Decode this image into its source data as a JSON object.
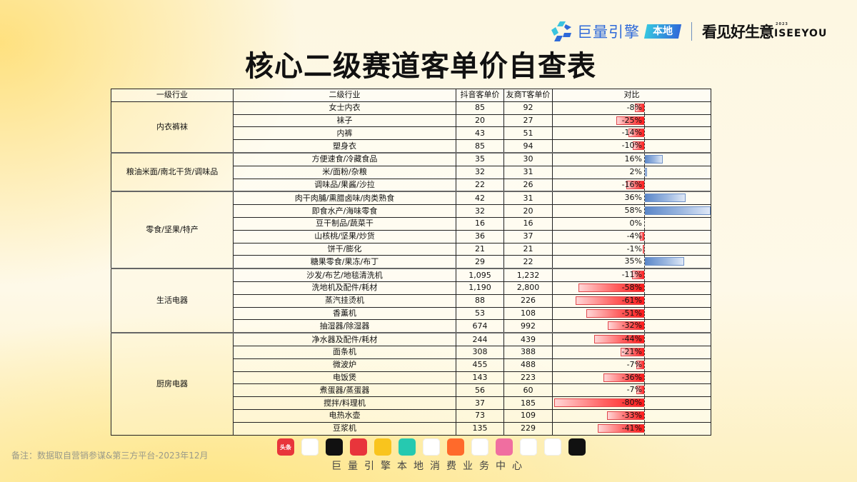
{
  "header": {
    "brand": "巨量引擎",
    "brand_badge": "本地",
    "slogan": "看见好生意",
    "slogan_en": "ISEEYOU",
    "slogan_year": "2023"
  },
  "title": "核心二级赛道客单价自查表",
  "table": {
    "headers": [
      "一级行业",
      "二级行业",
      "抖音客单价",
      "友商T客单价",
      "对比"
    ],
    "groups": [
      {
        "name": "内衣裤袜",
        "rows": [
          {
            "name": "女士内衣",
            "douyin": "85",
            "rival": "92",
            "pct": -8,
            "pct_label": "-8%"
          },
          {
            "name": "袜子",
            "douyin": "20",
            "rival": "27",
            "pct": -25,
            "pct_label": "-25%"
          },
          {
            "name": "内裤",
            "douyin": "43",
            "rival": "51",
            "pct": -14,
            "pct_label": "-14%"
          },
          {
            "name": "塑身衣",
            "douyin": "85",
            "rival": "94",
            "pct": -10,
            "pct_label": "-10%"
          }
        ]
      },
      {
        "name": "粮油米面/南北干货/调味品",
        "rows": [
          {
            "name": "方便速食/冷藏食品",
            "douyin": "35",
            "rival": "30",
            "pct": 16,
            "pct_label": "16%"
          },
          {
            "name": "米/面粉/杂粮",
            "douyin": "32",
            "rival": "31",
            "pct": 2,
            "pct_label": "2%"
          },
          {
            "name": "调味品/果酱/沙拉",
            "douyin": "22",
            "rival": "26",
            "pct": -16,
            "pct_label": "-16%"
          }
        ]
      },
      {
        "name": "零食/坚果/特产",
        "rows": [
          {
            "name": "肉干肉脯/熏腊卤味/肉类熟食",
            "douyin": "42",
            "rival": "31",
            "pct": 36,
            "pct_label": "36%"
          },
          {
            "name": "即食水产/海味零食",
            "douyin": "32",
            "rival": "20",
            "pct": 58,
            "pct_label": "58%"
          },
          {
            "name": "豆干制品/蔬菜干",
            "douyin": "16",
            "rival": "16",
            "pct": 0,
            "pct_label": "0%"
          },
          {
            "name": "山核桃/坚果/炒货",
            "douyin": "36",
            "rival": "37",
            "pct": -4,
            "pct_label": "-4%"
          },
          {
            "name": "饼干/膨化",
            "douyin": "21",
            "rival": "21",
            "pct": -1,
            "pct_label": "-1%"
          },
          {
            "name": "糖果零食/果冻/布丁",
            "douyin": "29",
            "rival": "22",
            "pct": 35,
            "pct_label": "35%"
          }
        ]
      },
      {
        "name": "生活电器",
        "rows": [
          {
            "name": "沙发/布艺/地毯清洗机",
            "douyin": "1,095",
            "rival": "1,232",
            "pct": -11,
            "pct_label": "-11%"
          },
          {
            "name": "洗地机及配件/耗材",
            "douyin": "1,190",
            "rival": "2,800",
            "pct": -58,
            "pct_label": "-58%"
          },
          {
            "name": "蒸汽挂烫机",
            "douyin": "88",
            "rival": "226",
            "pct": -61,
            "pct_label": "-61%"
          },
          {
            "name": "香薰机",
            "douyin": "53",
            "rival": "108",
            "pct": -51,
            "pct_label": "-51%"
          },
          {
            "name": "抽湿器/除湿器",
            "douyin": "674",
            "rival": "992",
            "pct": -32,
            "pct_label": "-32%"
          }
        ]
      },
      {
        "name": "厨房电器",
        "rows": [
          {
            "name": "净水器及配件/耗材",
            "douyin": "244",
            "rival": "439",
            "pct": -44,
            "pct_label": "-44%"
          },
          {
            "name": "面条机",
            "douyin": "308",
            "rival": "388",
            "pct": -21,
            "pct_label": "-21%"
          },
          {
            "name": "微波炉",
            "douyin": "455",
            "rival": "488",
            "pct": -7,
            "pct_label": "-7%"
          },
          {
            "name": "电饭煲",
            "douyin": "143",
            "rival": "223",
            "pct": -36,
            "pct_label": "-36%"
          },
          {
            "name": "煮蛋器/蒸蛋器",
            "douyin": "56",
            "rival": "60",
            "pct": -7,
            "pct_label": "-7%"
          },
          {
            "name": "搅拌/料理机",
            "douyin": "37",
            "rival": "185",
            "pct": -80,
            "pct_label": "-80%"
          },
          {
            "name": "电热水壶",
            "douyin": "73",
            "rival": "109",
            "pct": -33,
            "pct_label": "-33%"
          },
          {
            "name": "豆浆机",
            "douyin": "135",
            "rival": "229",
            "pct": -41,
            "pct_label": "-41%"
          }
        ]
      }
    ]
  },
  "chart_data": {
    "type": "table",
    "title": "核心二级赛道客单价自查表",
    "columns": [
      "一级行业",
      "二级行业",
      "抖音客单价",
      "友商T客单价",
      "对比"
    ],
    "comparison_bar": {
      "type": "bar",
      "orientation": "horizontal",
      "axis": 0,
      "unit": "%",
      "negative_color": "#ff1a1a",
      "positive_color": "#5a86c8"
    },
    "categories": [
      "女士内衣",
      "袜子",
      "内裤",
      "塑身衣",
      "方便速食/冷藏食品",
      "米/面粉/杂粮",
      "调味品/果酱/沙拉",
      "肉干肉脯/熏腊卤味/肉类熟食",
      "即食水产/海味零食",
      "豆干制品/蔬菜干",
      "山核桃/坚果/炒货",
      "饼干/膨化",
      "糖果零食/果冻/布丁",
      "沙发/布艺/地毯清洗机",
      "洗地机及配件/耗材",
      "蒸汽挂烫机",
      "香薰机",
      "抽湿器/除湿器",
      "净水器及配件/耗材",
      "面条机",
      "微波炉",
      "电饭煲",
      "煮蛋器/蒸蛋器",
      "搅拌/料理机",
      "电热水壶",
      "豆浆机"
    ],
    "series": [
      {
        "name": "抖音客单价",
        "values": [
          85,
          20,
          43,
          85,
          35,
          32,
          22,
          42,
          32,
          16,
          36,
          21,
          29,
          1095,
          1190,
          88,
          53,
          674,
          244,
          308,
          455,
          143,
          56,
          37,
          73,
          135
        ]
      },
      {
        "name": "友商T客单价",
        "values": [
          92,
          27,
          51,
          94,
          30,
          31,
          26,
          31,
          20,
          16,
          37,
          21,
          22,
          1232,
          2800,
          226,
          108,
          992,
          439,
          388,
          488,
          223,
          60,
          185,
          109,
          229
        ]
      },
      {
        "name": "对比(%)",
        "values": [
          -8,
          -25,
          -14,
          -10,
          16,
          2,
          -16,
          36,
          58,
          0,
          -4,
          -1,
          35,
          -11,
          -58,
          -61,
          -51,
          -32,
          -44,
          -21,
          -7,
          -36,
          -7,
          -80,
          -33,
          -41
        ]
      }
    ]
  },
  "footer": {
    "note": "备注：数据取自营销参谋&第三方平台-2023年12月",
    "center_text": "巨量引擎本地消费业务中心",
    "apps": [
      {
        "name": "toutiao-icon",
        "label": "头条",
        "bg": "#e8353b"
      },
      {
        "name": "xigua-icon",
        "label": "",
        "bg": "#ffffff"
      },
      {
        "name": "douyin-icon",
        "label": "",
        "bg": "#111111"
      },
      {
        "name": "huoshan-icon",
        "label": "",
        "bg": "#e8353b"
      },
      {
        "name": "dongchedi-icon",
        "label": "",
        "bg": "#f9c41d"
      },
      {
        "name": "app-green-icon",
        "label": "",
        "bg": "#26c9b0"
      },
      {
        "name": "app-pink-circle-icon",
        "label": "",
        "bg": "#ffffff"
      },
      {
        "name": "fanqie-novel-icon",
        "label": "",
        "bg": "#ff6a2b"
      },
      {
        "name": "tomato-icon",
        "label": "",
        "bg": "#ffffff"
      },
      {
        "name": "app-pink-face-icon",
        "label": "",
        "bg": "#f06ea0"
      },
      {
        "name": "app-colorbar-icon",
        "label": "",
        "bg": "#ffffff"
      },
      {
        "name": "app-pink-square-icon",
        "label": "",
        "bg": "#ffffff"
      },
      {
        "name": "capcut-icon",
        "label": "",
        "bg": "#111111"
      }
    ]
  }
}
